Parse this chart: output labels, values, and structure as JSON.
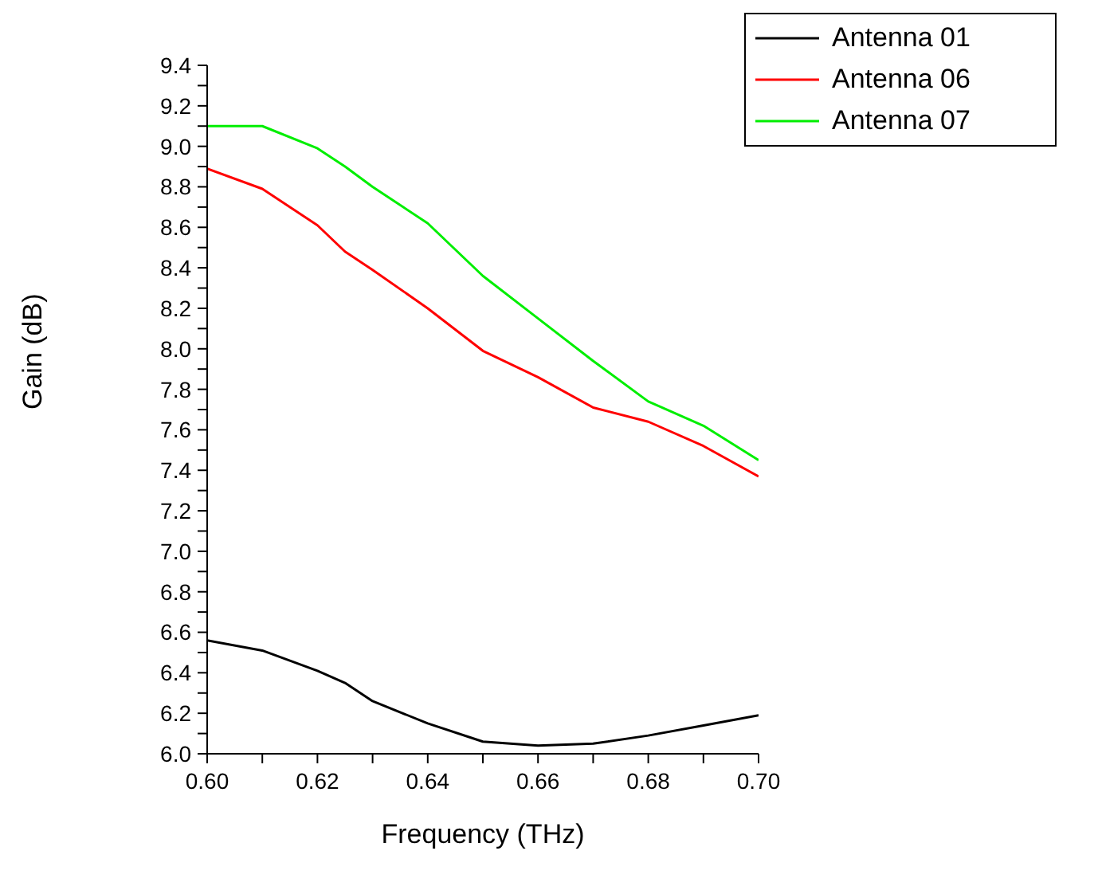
{
  "chart_data": {
    "type": "line",
    "xlabel": "Frequency (THz)",
    "ylabel": "Gain (dB)",
    "x": [
      0.6,
      0.61,
      0.62,
      0.625,
      0.63,
      0.64,
      0.65,
      0.66,
      0.67,
      0.68,
      0.69,
      0.7
    ],
    "series": [
      {
        "name": "Antenna 01",
        "color": "#000000",
        "values": [
          6.56,
          6.51,
          6.41,
          6.35,
          6.26,
          6.15,
          6.06,
          6.04,
          6.05,
          6.09,
          6.14,
          6.19
        ]
      },
      {
        "name": "Antenna 06",
        "color": "#ff0000",
        "values": [
          8.89,
          8.79,
          8.61,
          8.48,
          8.39,
          8.2,
          7.99,
          7.86,
          7.71,
          7.64,
          7.52,
          7.37
        ]
      },
      {
        "name": "Antenna 07",
        "color": "#00ee00",
        "values": [
          9.1,
          9.1,
          8.99,
          8.9,
          8.8,
          8.62,
          8.36,
          8.15,
          7.94,
          7.74,
          7.62,
          7.45
        ]
      }
    ],
    "xlim": [
      0.6,
      0.7
    ],
    "xticks": [
      {
        "value": 0.6,
        "label": "0.60"
      },
      {
        "value": 0.61,
        "label": null
      },
      {
        "value": 0.62,
        "label": "0.62"
      },
      {
        "value": 0.63,
        "label": null
      },
      {
        "value": 0.64,
        "label": "0.64"
      },
      {
        "value": 0.65,
        "label": null
      },
      {
        "value": 0.66,
        "label": "0.66"
      },
      {
        "value": 0.67,
        "label": null
      },
      {
        "value": 0.68,
        "label": "0.68"
      },
      {
        "value": 0.69,
        "label": null
      },
      {
        "value": 0.7,
        "label": "0.70"
      }
    ],
    "ylim": [
      6.0,
      9.4
    ],
    "yticks": [
      {
        "value": 6.0,
        "label": "6.0"
      },
      {
        "value": 6.1,
        "label": null
      },
      {
        "value": 6.2,
        "label": "6.2"
      },
      {
        "value": 6.3,
        "label": null
      },
      {
        "value": 6.4,
        "label": "6.4"
      },
      {
        "value": 6.5,
        "label": null
      },
      {
        "value": 6.6,
        "label": "6.6"
      },
      {
        "value": 6.7,
        "label": null
      },
      {
        "value": 6.8,
        "label": "6.8"
      },
      {
        "value": 6.9,
        "label": null
      },
      {
        "value": 7.0,
        "label": "7.0"
      },
      {
        "value": 7.1,
        "label": null
      },
      {
        "value": 7.2,
        "label": "7.2"
      },
      {
        "value": 7.3,
        "label": null
      },
      {
        "value": 7.4,
        "label": "7.4"
      },
      {
        "value": 7.5,
        "label": null
      },
      {
        "value": 7.6,
        "label": "7.6"
      },
      {
        "value": 7.7,
        "label": null
      },
      {
        "value": 7.8,
        "label": "7.8"
      },
      {
        "value": 7.9,
        "label": null
      },
      {
        "value": 8.0,
        "label": "8.0"
      },
      {
        "value": 8.1,
        "label": null
      },
      {
        "value": 8.2,
        "label": "8.2"
      },
      {
        "value": 8.3,
        "label": null
      },
      {
        "value": 8.4,
        "label": "8.4"
      },
      {
        "value": 8.5,
        "label": null
      },
      {
        "value": 8.6,
        "label": "8.6"
      },
      {
        "value": 8.7,
        "label": null
      },
      {
        "value": 8.8,
        "label": "8.8"
      },
      {
        "value": 8.9,
        "label": null
      },
      {
        "value": 9.0,
        "label": "9.0"
      },
      {
        "value": 9.1,
        "label": null
      },
      {
        "value": 9.2,
        "label": "9.2"
      },
      {
        "value": 9.3,
        "label": null
      },
      {
        "value": 9.4,
        "label": "9.4"
      }
    ],
    "legend": "top right",
    "grid": false,
    "marker": "none",
    "line_style": "solid"
  }
}
